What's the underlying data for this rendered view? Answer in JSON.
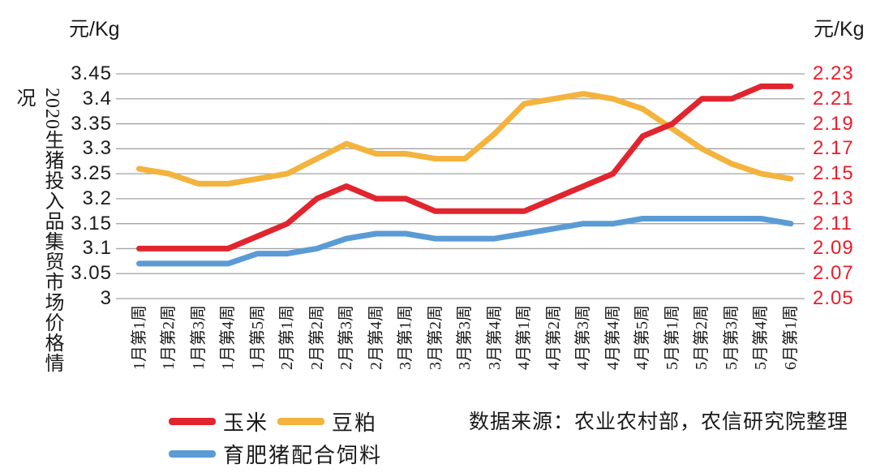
{
  "title": "2020生猪投入品集贸市场价格情况",
  "source_note": "数据来源：农业农村部，农信研究院整理",
  "left_axis": {
    "unit": "元/Kg",
    "tick_labels": [
      "3.45",
      "3.4",
      "3.35",
      "3.3",
      "3.25",
      "3.2",
      "3.15",
      "3.1",
      "3.05",
      "3"
    ],
    "color": "#1a1a1a"
  },
  "right_axis": {
    "unit": "元/Kg",
    "tick_labels": [
      "2.23",
      "2.21",
      "2.19",
      "2.17",
      "2.15",
      "2.13",
      "2.11",
      "2.09",
      "2.07",
      "2.05"
    ],
    "color": "#ed1c29"
  },
  "legend": [
    {
      "label": "玉米",
      "color": "#e1252f"
    },
    {
      "label": "豆粕",
      "color": "#f3b33c"
    },
    {
      "label": "育肥猪配合饲料",
      "color": "#5b9bd5"
    }
  ],
  "colors": {
    "gridline": "#a3a3a3",
    "corn_red": "#e1252f",
    "soybean_yellow": "#f3b33c",
    "feed_blue": "#5b9bd5",
    "right_label_red": "#ed1c29"
  },
  "chart_data": {
    "type": "line",
    "categories": [
      "1月第1周",
      "1月第2周",
      "1月第3周",
      "1月第4周",
      "1月第5周",
      "2月第1周",
      "2月第2周",
      "2月第3周",
      "2月第4周",
      "3月第1周",
      "3月第2周",
      "3月第3周",
      "3月第4周",
      "4月第1周",
      "4月第2周",
      "4月第3周",
      "4月第4周",
      "4月第5周",
      "5月第1周",
      "5月第2周",
      "5月第3周",
      "5月第4周",
      "6月第1周"
    ],
    "series": [
      {
        "name": "豆粕",
        "axis": "left",
        "color": "#f3b33c",
        "values": [
          3.26,
          3.25,
          3.23,
          3.23,
          3.24,
          3.25,
          3.28,
          3.31,
          3.29,
          3.29,
          3.28,
          3.28,
          3.33,
          3.39,
          3.4,
          3.41,
          3.4,
          3.38,
          3.34,
          3.3,
          3.27,
          3.25,
          3.24
        ]
      },
      {
        "name": "育肥猪配合饲料",
        "axis": "left",
        "color": "#5b9bd5",
        "values": [
          3.07,
          3.07,
          3.07,
          3.07,
          3.09,
          3.09,
          3.1,
          3.12,
          3.13,
          3.13,
          3.12,
          3.12,
          3.12,
          3.13,
          3.14,
          3.15,
          3.15,
          3.16,
          3.16,
          3.16,
          3.16,
          3.16,
          3.15
        ]
      },
      {
        "name": "玉米",
        "axis": "right",
        "color": "#e1252f",
        "values": [
          2.09,
          2.09,
          2.09,
          2.09,
          2.1,
          2.11,
          2.13,
          2.14,
          2.13,
          2.13,
          2.12,
          2.12,
          2.12,
          2.12,
          2.13,
          2.14,
          2.15,
          2.18,
          2.19,
          2.21,
          2.21,
          2.22,
          2.22
        ]
      }
    ],
    "left_axis_range": [
      3.0,
      3.45
    ],
    "right_axis_range": [
      2.05,
      2.23
    ],
    "left_axis_label": "元/Kg",
    "right_axis_label": "元/Kg",
    "grid": true,
    "legend_position": "bottom-left"
  }
}
